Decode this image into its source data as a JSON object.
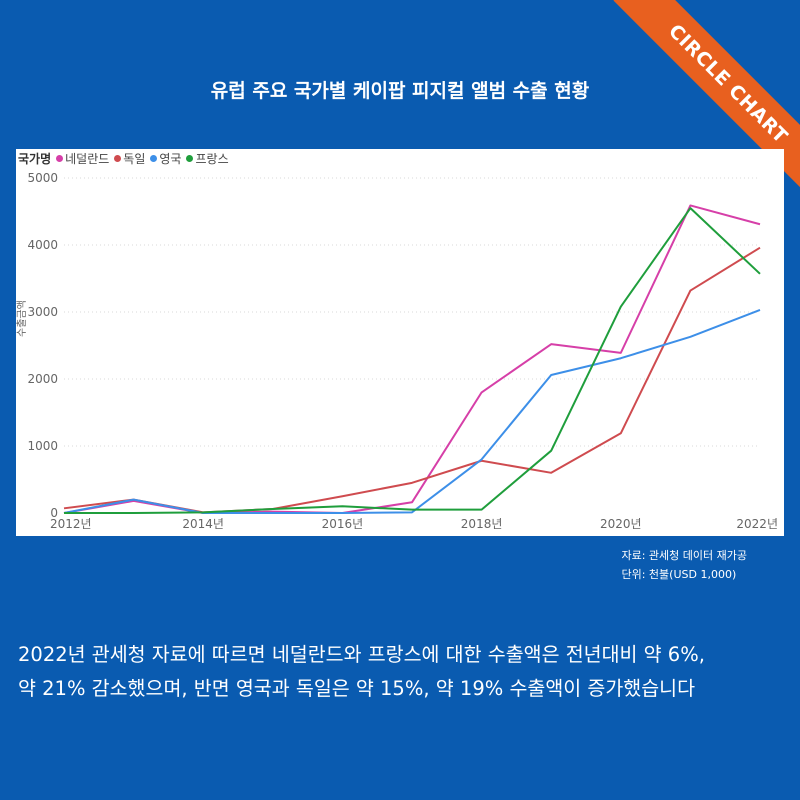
{
  "brand": {
    "ribbon_text": "CIRCLE CHART",
    "ribbon_color": "#e8601f"
  },
  "colors": {
    "background": "#0a5bb0",
    "panel": "#ffffff"
  },
  "title": "유럽 주요 국가별 케이팝 피지컬 앨범 수출 현황",
  "source": {
    "line1": "자료: 관세청 데이터 재가공",
    "line2": "단위: 천불(USD 1,000)"
  },
  "description": {
    "line1": "2022년 관세청 자료에 따르면 네덜란드와 프랑스에 대한 수출액은 전년대비 약 6%,",
    "line2": "약 21% 감소했으며, 반면 영국과 독일은 약 15%, 약 19% 수출액이 증가했습니다"
  },
  "chart_data": {
    "type": "line",
    "legend_title": "국가명",
    "legend_placement": "top-left",
    "ylabel": "수출금액",
    "xlabel": "",
    "x": [
      2012,
      2013,
      2014,
      2015,
      2016,
      2017,
      2018,
      2019,
      2020,
      2021,
      2022
    ],
    "x_tick_labels": [
      "2012년",
      "2014년",
      "2016년",
      "2018년",
      "2020년",
      "2022년"
    ],
    "x_tick_values": [
      2012,
      2014,
      2016,
      2018,
      2020,
      2022
    ],
    "y_ticks": [
      0,
      1000,
      2000,
      3000,
      4000,
      5000
    ],
    "ylim": [
      0,
      5000
    ],
    "grid": "horizontal dotted",
    "series": [
      {
        "name": "네덜란드",
        "color": "#d63fa8",
        "values": [
          0,
          180,
          0,
          20,
          0,
          160,
          1800,
          2520,
          2390,
          4590,
          4310
        ]
      },
      {
        "name": "독일",
        "color": "#cf4b4f",
        "values": [
          70,
          200,
          10,
          60,
          250,
          450,
          780,
          600,
          1190,
          3320,
          3960
        ]
      },
      {
        "name": "영국",
        "color": "#3d8fe8",
        "values": [
          0,
          200,
          0,
          0,
          0,
          10,
          800,
          2060,
          2310,
          2630,
          3030
        ]
      },
      {
        "name": "프랑스",
        "color": "#1f9e3c",
        "values": [
          0,
          0,
          10,
          60,
          100,
          50,
          50,
          930,
          3080,
          4550,
          3570
        ]
      }
    ]
  }
}
